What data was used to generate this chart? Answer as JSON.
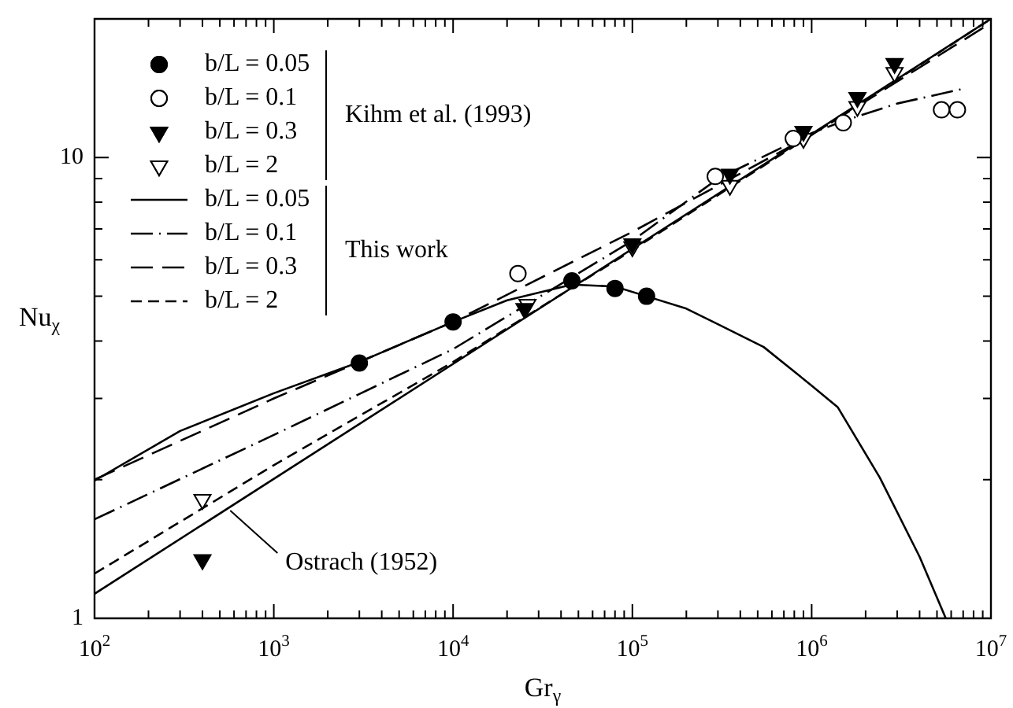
{
  "chart_data": {
    "type": "scatter",
    "xlabel": "Gr$_{γ}$",
    "ylabel": "Nu$_{χ}$",
    "log": "xy",
    "grid": false,
    "legend": "top left",
    "xlim": [
      100,
      10000000
    ],
    "ylim": [
      1,
      20
    ],
    "xticks": [
      {
        "value": 100,
        "label": "10$^{2}$"
      },
      {
        "value": 200,
        "label": null
      },
      {
        "value": 300,
        "label": null
      },
      {
        "value": 400,
        "label": null
      },
      {
        "value": 500,
        "label": null
      },
      {
        "value": 600,
        "label": null
      },
      {
        "value": 700,
        "label": null
      },
      {
        "value": 800,
        "label": null
      },
      {
        "value": 900,
        "label": null
      },
      {
        "value": 1000,
        "label": "10$^{3}$"
      },
      {
        "value": 2000,
        "label": null
      },
      {
        "value": 3000,
        "label": null
      },
      {
        "value": 4000,
        "label": null
      },
      {
        "value": 5000,
        "label": null
      },
      {
        "value": 6000,
        "label": null
      },
      {
        "value": 7000,
        "label": null
      },
      {
        "value": 8000,
        "label": null
      },
      {
        "value": 9000,
        "label": null
      },
      {
        "value": 10000,
        "label": "10$^{4}$"
      },
      {
        "value": 20000,
        "label": null
      },
      {
        "value": 30000,
        "label": null
      },
      {
        "value": 40000,
        "label": null
      },
      {
        "value": 50000,
        "label": null
      },
      {
        "value": 60000,
        "label": null
      },
      {
        "value": 70000,
        "label": null
      },
      {
        "value": 80000,
        "label": null
      },
      {
        "value": 90000,
        "label": null
      },
      {
        "value": 100000,
        "label": "10$^{5}$"
      },
      {
        "value": 200000,
        "label": null
      },
      {
        "value": 300000,
        "label": null
      },
      {
        "value": 400000,
        "label": null
      },
      {
        "value": 500000,
        "label": null
      },
      {
        "value": 600000,
        "label": null
      },
      {
        "value": 700000,
        "label": null
      },
      {
        "value": 800000,
        "label": null
      },
      {
        "value": 900000,
        "label": null
      },
      {
        "value": 1000000,
        "label": "10$^{6}$"
      },
      {
        "value": 2000000,
        "label": null
      },
      {
        "value": 3000000,
        "label": null
      },
      {
        "value": 4000000,
        "label": null
      },
      {
        "value": 5000000,
        "label": null
      },
      {
        "value": 6000000,
        "label": null
      },
      {
        "value": 7000000,
        "label": null
      },
      {
        "value": 8000000,
        "label": null
      },
      {
        "value": 9000000,
        "label": null
      },
      {
        "value": 10000000,
        "label": "10$^{7}$"
      }
    ],
    "yticks": [
      1,
      {
        "value": 2,
        "label": null
      },
      {
        "value": 3,
        "label": null
      },
      {
        "value": 4,
        "label": null
      },
      {
        "value": 5,
        "label": null
      },
      {
        "value": 6,
        "label": null
      },
      {
        "value": 7,
        "label": null
      },
      {
        "value": 8,
        "label": null
      },
      {
        "value": 9,
        "label": null
      },
      10,
      {
        "value": 20,
        "label": null
      }
    ],
    "series": [
      {
        "name": "b/L = 0.05",
        "type": "scatter",
        "marker": "circle",
        "color": "#000000",
        "x": [
          3000,
          10000,
          46000,
          80000,
          120000
        ],
        "values": [
          3.58,
          4.4,
          5.4,
          5.2,
          5.0
        ]
      },
      {
        "name": "b/L = 0.1",
        "type": "scatter",
        "marker": "circle-open",
        "color": "#000000",
        "x": [
          23000,
          290000,
          790000,
          1500000,
          5300000,
          6500000
        ],
        "values": [
          5.6,
          9.1,
          11,
          11.9,
          12.7,
          12.7
        ]
      },
      {
        "name": "b/L = 0.3",
        "type": "scatter",
        "marker": "triangle",
        "color": "#000000",
        "x": [
          400,
          25000,
          100000,
          350000,
          900000,
          1800000,
          2900000
        ],
        "values": [
          1.34,
          4.7,
          6.5,
          9.2,
          11.4,
          13.5,
          16
        ]
      },
      {
        "name": "b/L = 2",
        "type": "scatter",
        "marker": "triangle-open",
        "color": "#000000",
        "x": [
          400,
          26000,
          100000,
          350000,
          900000,
          1800000,
          2900000
        ],
        "values": [
          1.81,
          4.8,
          6.4,
          8.7,
          11,
          12.9,
          15.3
        ]
      },
      {
        "name": "b/L = 0.05",
        "type": "line",
        "line_style": "solid",
        "color": "#000000",
        "x": [
          100,
          300,
          1000,
          3000,
          10000,
          20000,
          46000,
          80000,
          120000,
          200000,
          300000,
          540000,
          1000000,
          1400000,
          2400000,
          4000000,
          5600000
        ],
        "values": [
          1.99,
          2.55,
          3.08,
          3.6,
          4.4,
          4.9,
          5.3,
          5.25,
          5.0,
          4.7,
          4.35,
          3.88,
          3.2,
          2.87,
          2.02,
          1.36,
          1
        ]
      },
      {
        "name": "b/L = 0.1",
        "type": "line",
        "line_style": "dashdot",
        "color": "#000000",
        "x": [
          100,
          1000,
          10000,
          100000,
          300000,
          1000000,
          1500000,
          3000000,
          7000000
        ],
        "values": [
          1.64,
          2.5,
          3.84,
          6.6,
          9.0,
          11.3,
          12.0,
          13.1,
          14.1
        ]
      },
      {
        "name": "b/L = 0.3",
        "type": "line",
        "line_style": "longdash",
        "color": "#000000",
        "x": [
          100,
          1000,
          10000,
          100000,
          1000000,
          10000000
        ],
        "values": [
          2.0,
          3.0,
          4.4,
          6.9,
          11.2,
          19.6
        ]
      },
      {
        "name": "b/L = 2",
        "type": "line",
        "line_style": "dashed",
        "color": "#000000",
        "x": [
          100,
          1000,
          10000,
          100000,
          1000000,
          10000000
        ],
        "values": [
          1.25,
          2.15,
          3.6,
          6.3,
          11.2,
          20
        ]
      },
      {
        "type": "line",
        "line_style": "solid",
        "color": "#000000",
        "x": [
          100,
          10000000
        ],
        "values": [
          1.13,
          20
        ]
      }
    ],
    "annotations": [
      "Kihm et al. (1993)",
      "This work",
      {
        "text": "Ostrach (1952)",
        "x": 560,
        "y": 1.74
      }
    ]
  }
}
